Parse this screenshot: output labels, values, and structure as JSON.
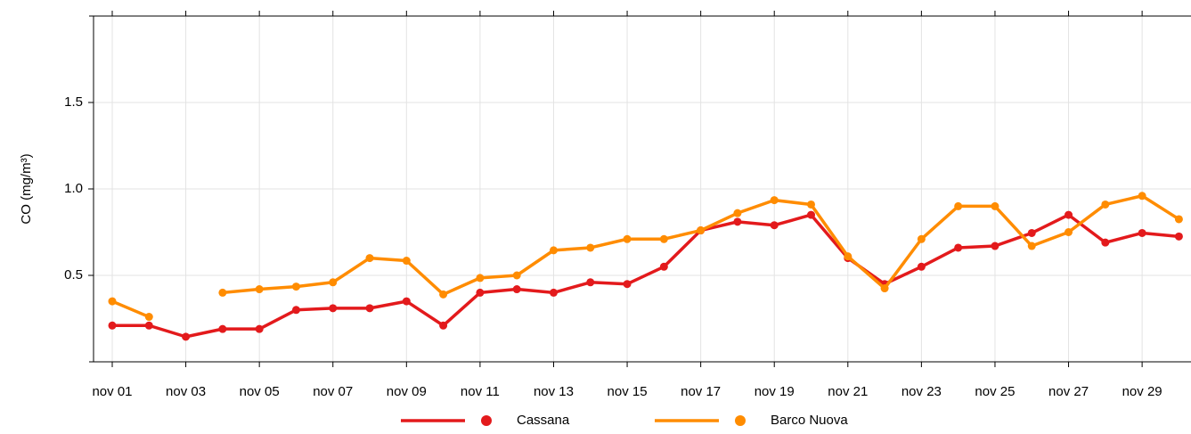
{
  "chart_data": {
    "type": "line",
    "y_label": "CO (mg/m³)",
    "categories": [
      "nov 01",
      null,
      "nov 03",
      null,
      "nov 05",
      null,
      "nov 07",
      null,
      "nov 09",
      null,
      "nov 11",
      null,
      "nov 13",
      null,
      "nov 15",
      null,
      "nov 17",
      null,
      "nov 19",
      null,
      "nov 21",
      null,
      "nov 23",
      null,
      "nov 25",
      null,
      "nov 27",
      null,
      "nov 29",
      null
    ],
    "series": [
      {
        "name": "Cassana",
        "color": "#e31a1c",
        "values": [
          0.21,
          0.21,
          0.145,
          0.19,
          0.19,
          0.3,
          0.31,
          0.31,
          0.35,
          0.21,
          0.4,
          0.42,
          0.4,
          0.46,
          0.45,
          0.55,
          0.76,
          0.81,
          0.79,
          0.85,
          0.6,
          0.45,
          0.55,
          0.66,
          0.67,
          0.745,
          0.85,
          0.69,
          0.745,
          0.725
        ]
      },
      {
        "name": "Barco Nuova",
        "color": "#ff8c00",
        "values": [
          0.35,
          0.26,
          null,
          0.4,
          0.42,
          0.435,
          0.46,
          0.6,
          0.585,
          0.39,
          0.485,
          0.5,
          0.645,
          0.66,
          0.71,
          0.71,
          0.76,
          0.86,
          0.935,
          0.91,
          0.61,
          0.425,
          0.71,
          0.9,
          0.9,
          0.67,
          0.75,
          0.91,
          0.96,
          0.825
        ]
      }
    ],
    "ylim": [
      0,
      2
    ],
    "yticks": [
      {
        "value": 0.5,
        "label": "0.5"
      },
      {
        "value": 1,
        "label": "1.0"
      },
      {
        "value": 1.5,
        "label": "1.5"
      }
    ],
    "grid": true,
    "legend": "bottom"
  }
}
